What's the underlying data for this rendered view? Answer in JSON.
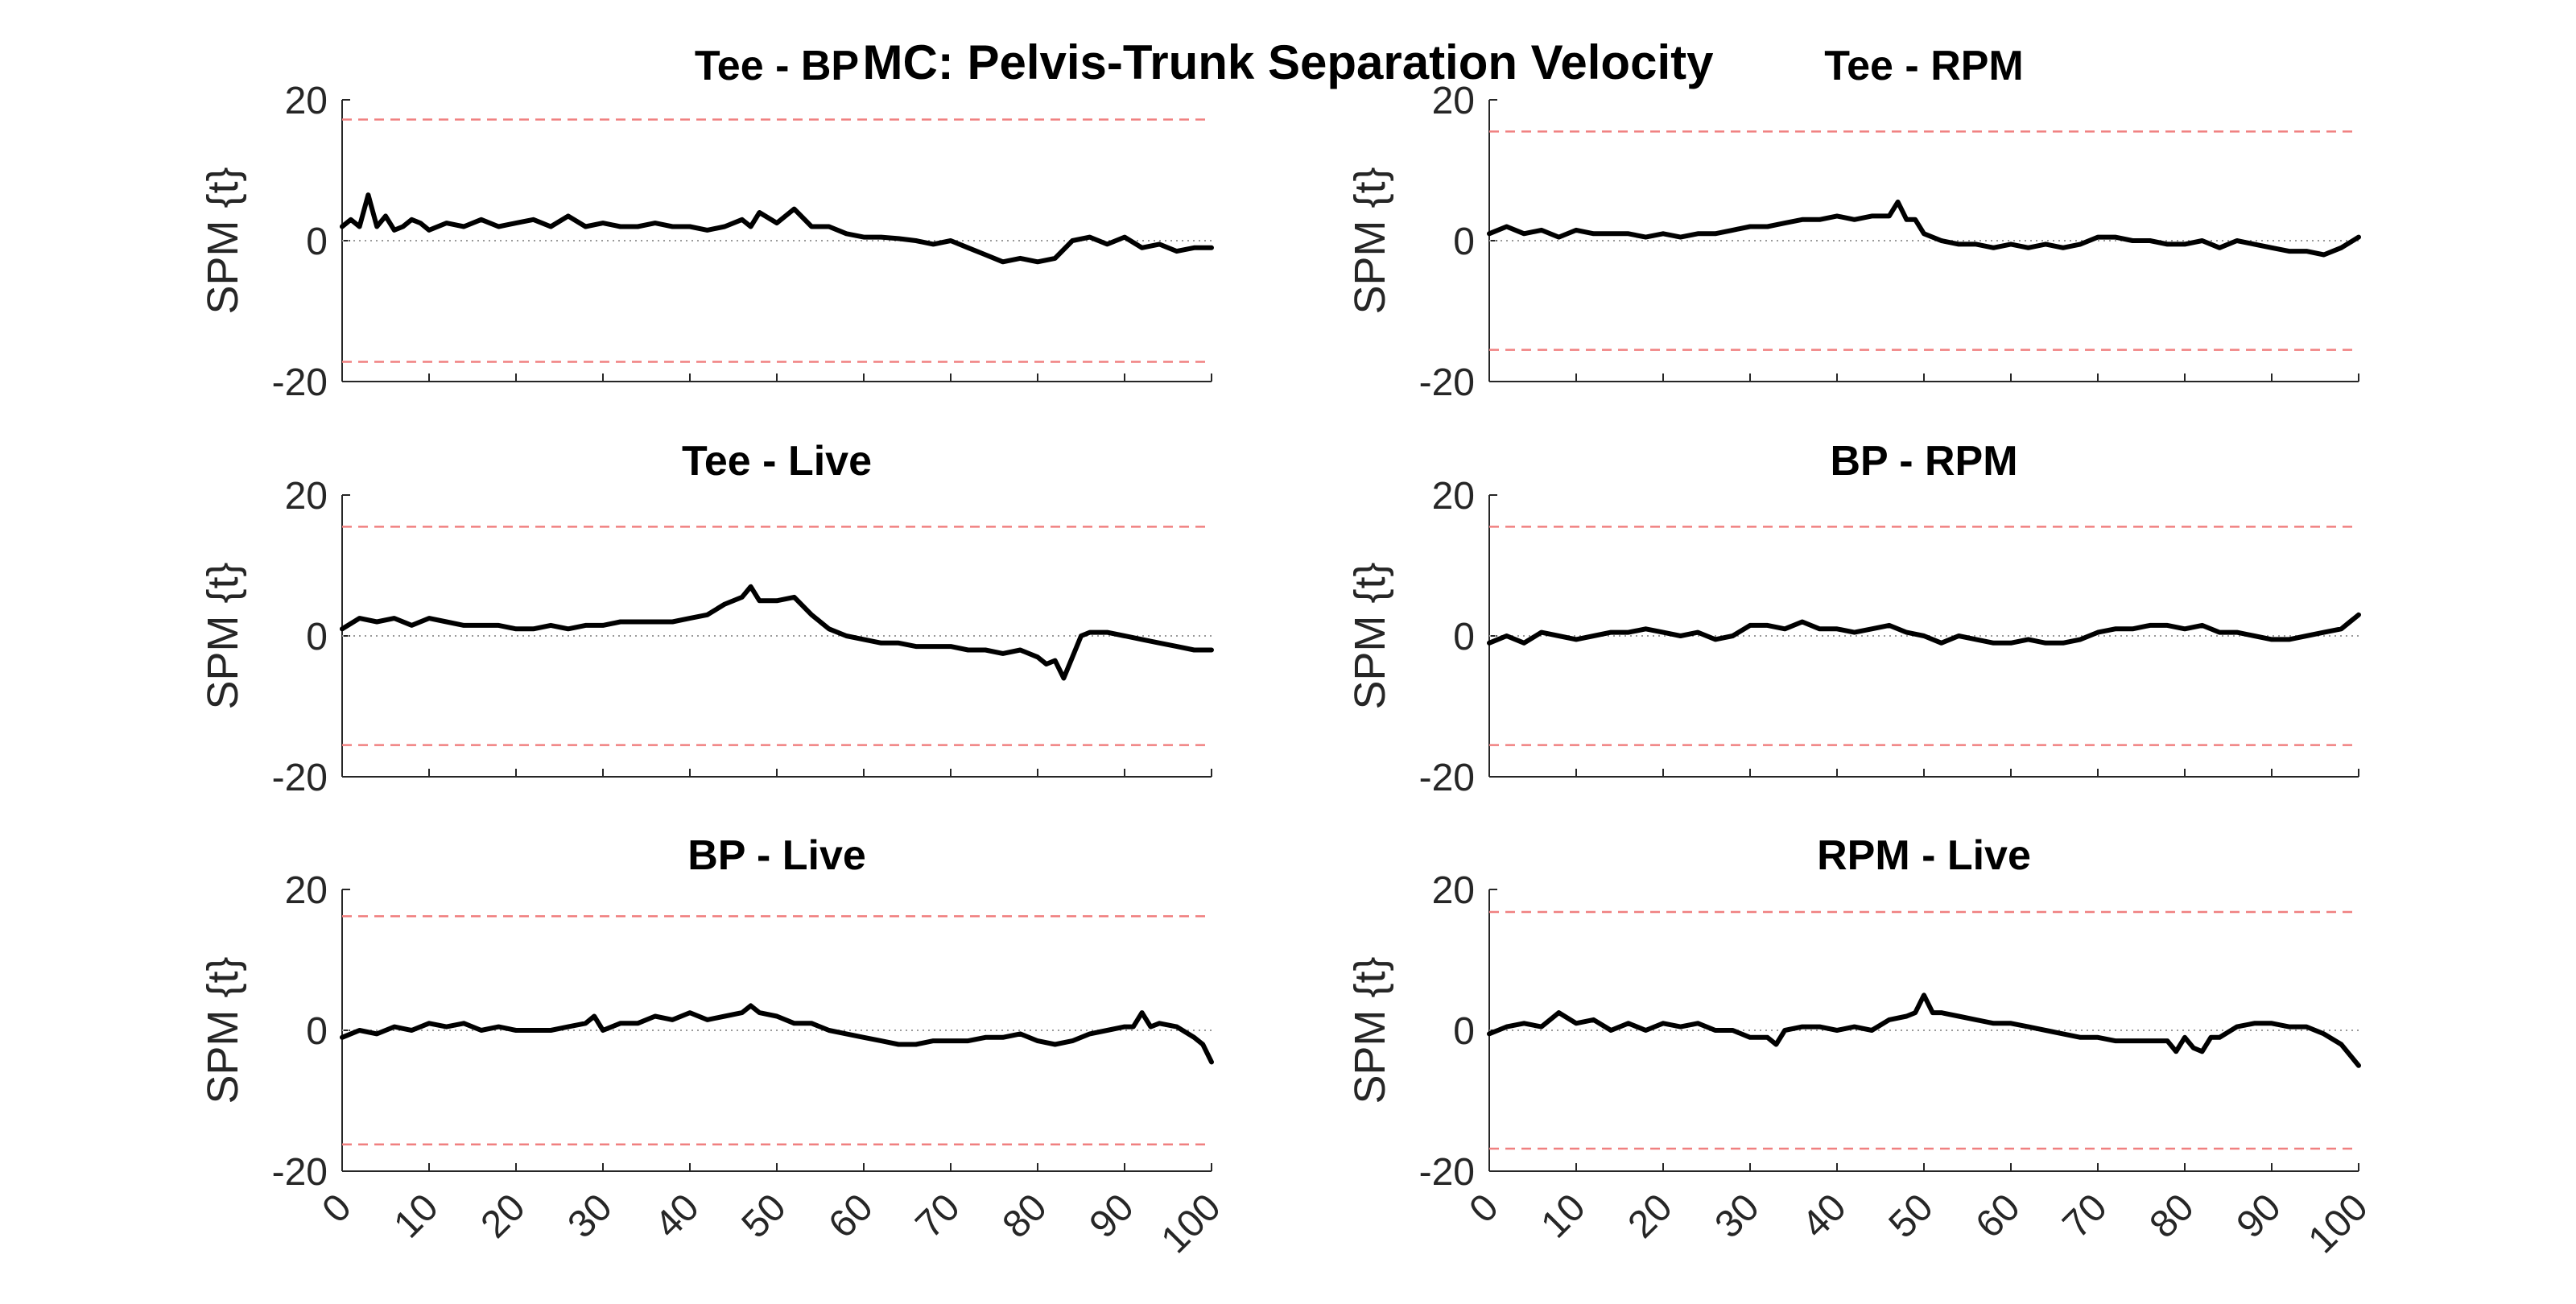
{
  "figure_title": "MC: Pelvis-Trunk Separation Velocity",
  "chart_data": [
    {
      "type": "line",
      "title": "Tee - BP",
      "ylabel": "SPM {t}",
      "xlim": [
        0,
        100
      ],
      "ylim": [
        -20,
        20
      ],
      "yticks": [
        "-20",
        "0",
        "20"
      ],
      "xticks": [
        "0",
        "10",
        "20",
        "30",
        "40",
        "50",
        "60",
        "70",
        "80",
        "90",
        "100"
      ],
      "show_xtick_labels": false,
      "threshold": 17.2,
      "series": [
        {
          "x": [
            0,
            1,
            2,
            3,
            4,
            5,
            6,
            7,
            8,
            9,
            10,
            12,
            14,
            16,
            18,
            20,
            22,
            24,
            26,
            28,
            30,
            32,
            34,
            36,
            38,
            40,
            42,
            44,
            46,
            47,
            48,
            50,
            52,
            54,
            56,
            58,
            60,
            62,
            64,
            66,
            68,
            70,
            72,
            74,
            76,
            78,
            80,
            82,
            84,
            86,
            88,
            90,
            92,
            94,
            96,
            98,
            100
          ],
          "y": [
            2,
            3,
            2,
            6.5,
            2,
            3.5,
            1.5,
            2,
            3,
            2.5,
            1.5,
            2.5,
            2,
            3,
            2,
            2.5,
            3,
            2,
            3.5,
            2,
            2.5,
            2,
            2,
            2.5,
            2,
            2,
            1.5,
            2,
            3,
            2,
            4,
            2.5,
            4.5,
            2,
            2,
            1,
            0.5,
            0.5,
            0.3,
            0,
            -0.5,
            0,
            -1,
            -2,
            -3,
            -2.5,
            -3,
            -2.5,
            0,
            0.5,
            -0.5,
            0.5,
            -1,
            -0.5,
            -1.5,
            -1,
            -1
          ]
        }
      ]
    },
    {
      "type": "line",
      "title": "Tee - RPM",
      "ylabel": "SPM {t}",
      "xlim": [
        0,
        100
      ],
      "ylim": [
        -20,
        20
      ],
      "yticks": [
        "-20",
        "0",
        "20"
      ],
      "xticks": [
        "0",
        "10",
        "20",
        "30",
        "40",
        "50",
        "60",
        "70",
        "80",
        "90",
        "100"
      ],
      "show_xtick_labels": false,
      "threshold": 15.5,
      "series": [
        {
          "x": [
            0,
            2,
            4,
            6,
            8,
            10,
            12,
            14,
            16,
            18,
            20,
            22,
            24,
            26,
            28,
            30,
            32,
            34,
            36,
            38,
            40,
            42,
            44,
            46,
            47,
            48,
            49,
            50,
            52,
            54,
            56,
            58,
            60,
            62,
            64,
            66,
            68,
            70,
            72,
            74,
            76,
            78,
            80,
            82,
            84,
            86,
            88,
            90,
            92,
            94,
            96,
            98,
            100
          ],
          "y": [
            1,
            2,
            1,
            1.5,
            0.5,
            1.5,
            1,
            1,
            1,
            0.5,
            1,
            0.5,
            1,
            1,
            1.5,
            2,
            2,
            2.5,
            3,
            3,
            3.5,
            3,
            3.5,
            3.5,
            5.5,
            3,
            3,
            1,
            0,
            -0.5,
            -0.5,
            -1,
            -0.5,
            -1,
            -0.5,
            -1,
            -0.5,
            0.5,
            0.5,
            0,
            0,
            -0.5,
            -0.5,
            0,
            -1,
            0,
            -0.5,
            -1,
            -1.5,
            -1.5,
            -2,
            -1,
            0.5
          ]
        }
      ]
    },
    {
      "type": "line",
      "title": "Tee - Live",
      "ylabel": "SPM {t}",
      "xlim": [
        0,
        100
      ],
      "ylim": [
        -20,
        20
      ],
      "yticks": [
        "-20",
        "0",
        "20"
      ],
      "xticks": [
        "0",
        "10",
        "20",
        "30",
        "40",
        "50",
        "60",
        "70",
        "80",
        "90",
        "100"
      ],
      "show_xtick_labels": false,
      "threshold": 15.5,
      "series": [
        {
          "x": [
            0,
            2,
            4,
            6,
            8,
            10,
            12,
            14,
            16,
            18,
            20,
            22,
            24,
            26,
            28,
            30,
            32,
            34,
            36,
            38,
            40,
            42,
            44,
            46,
            47,
            48,
            50,
            52,
            54,
            56,
            58,
            60,
            62,
            64,
            66,
            68,
            70,
            72,
            74,
            76,
            78,
            80,
            81,
            82,
            83,
            84,
            85,
            86,
            88,
            90,
            92,
            94,
            96,
            98,
            100
          ],
          "y": [
            1,
            2.5,
            2,
            2.5,
            1.5,
            2.5,
            2,
            1.5,
            1.5,
            1.5,
            1,
            1,
            1.5,
            1,
            1.5,
            1.5,
            2,
            2,
            2,
            2,
            2.5,
            3,
            4.5,
            5.5,
            7,
            5,
            5,
            5.5,
            3,
            1,
            0,
            -0.5,
            -1,
            -1,
            -1.5,
            -1.5,
            -1.5,
            -2,
            -2,
            -2.5,
            -2,
            -3,
            -4,
            -3.5,
            -6,
            -3,
            0,
            0.5,
            0.5,
            0,
            -0.5,
            -1,
            -1.5,
            -2,
            -2
          ]
        }
      ]
    },
    {
      "type": "line",
      "title": "BP - RPM",
      "ylabel": "SPM {t}",
      "xlim": [
        0,
        100
      ],
      "ylim": [
        -20,
        20
      ],
      "yticks": [
        "-20",
        "0",
        "20"
      ],
      "xticks": [
        "0",
        "10",
        "20",
        "30",
        "40",
        "50",
        "60",
        "70",
        "80",
        "90",
        "100"
      ],
      "show_xtick_labels": false,
      "threshold": 15.5,
      "series": [
        {
          "x": [
            0,
            2,
            4,
            6,
            8,
            10,
            12,
            14,
            16,
            18,
            20,
            22,
            24,
            26,
            28,
            30,
            32,
            34,
            36,
            38,
            40,
            42,
            44,
            46,
            48,
            50,
            52,
            54,
            56,
            58,
            60,
            62,
            64,
            66,
            68,
            70,
            72,
            74,
            76,
            78,
            80,
            82,
            84,
            86,
            88,
            90,
            92,
            94,
            96,
            98,
            99,
            100
          ],
          "y": [
            -1,
            0,
            -1,
            0.5,
            0,
            -0.5,
            0,
            0.5,
            0.5,
            1,
            0.5,
            0,
            0.5,
            -0.5,
            0,
            1.5,
            1.5,
            1,
            2,
            1,
            1,
            0.5,
            1,
            1.5,
            0.5,
            0,
            -1,
            0,
            -0.5,
            -1,
            -1,
            -0.5,
            -1,
            -1,
            -0.5,
            0.5,
            1,
            1,
            1.5,
            1.5,
            1,
            1.5,
            0.5,
            0.5,
            0,
            -0.5,
            -0.5,
            0,
            0.5,
            1,
            2,
            3
          ]
        }
      ]
    },
    {
      "type": "line",
      "title": "BP - Live",
      "ylabel": "SPM {t}",
      "xlim": [
        0,
        100
      ],
      "ylim": [
        -20,
        20
      ],
      "yticks": [
        "-20",
        "0",
        "20"
      ],
      "xticks": [
        "0",
        "10",
        "20",
        "30",
        "40",
        "50",
        "60",
        "70",
        "80",
        "90",
        "100"
      ],
      "show_xtick_labels": true,
      "threshold": 16.2,
      "series": [
        {
          "x": [
            0,
            2,
            4,
            6,
            8,
            10,
            12,
            14,
            16,
            18,
            20,
            22,
            24,
            26,
            28,
            29,
            30,
            32,
            34,
            36,
            38,
            40,
            42,
            44,
            46,
            47,
            48,
            50,
            52,
            54,
            56,
            58,
            60,
            62,
            64,
            66,
            68,
            70,
            72,
            74,
            76,
            78,
            80,
            82,
            84,
            86,
            88,
            90,
            91,
            92,
            93,
            94,
            96,
            98,
            99,
            100
          ],
          "y": [
            -1,
            0,
            -0.5,
            0.5,
            0,
            1,
            0.5,
            1,
            0,
            0.5,
            0,
            0,
            0,
            0.5,
            1,
            2,
            0,
            1,
            1,
            2,
            1.5,
            2.5,
            1.5,
            2,
            2.5,
            3.5,
            2.5,
            2,
            1,
            1,
            0,
            -0.5,
            -1,
            -1.5,
            -2,
            -2,
            -1.5,
            -1.5,
            -1.5,
            -1,
            -1,
            -0.5,
            -1.5,
            -2,
            -1.5,
            -0.5,
            0,
            0.5,
            0.5,
            2.5,
            0.5,
            1,
            0.5,
            -1,
            -2,
            -4.5
          ]
        }
      ]
    },
    {
      "type": "line",
      "title": "RPM - Live",
      "ylabel": "SPM {t}",
      "xlim": [
        0,
        100
      ],
      "ylim": [
        -20,
        20
      ],
      "yticks": [
        "-20",
        "0",
        "20"
      ],
      "xticks": [
        "0",
        "10",
        "20",
        "30",
        "40",
        "50",
        "60",
        "70",
        "80",
        "90",
        "100"
      ],
      "show_xtick_labels": true,
      "threshold": 16.8,
      "series": [
        {
          "x": [
            0,
            2,
            4,
            6,
            8,
            10,
            12,
            14,
            16,
            18,
            20,
            22,
            24,
            26,
            28,
            30,
            32,
            33,
            34,
            36,
            38,
            40,
            42,
            44,
            46,
            48,
            49,
            50,
            51,
            52,
            54,
            56,
            58,
            60,
            62,
            64,
            66,
            68,
            70,
            72,
            74,
            76,
            78,
            79,
            80,
            81,
            82,
            83,
            84,
            86,
            88,
            90,
            92,
            94,
            96,
            98,
            100
          ],
          "y": [
            -0.5,
            0.5,
            1,
            0.5,
            2.5,
            1,
            1.5,
            0,
            1,
            0,
            1,
            0.5,
            1,
            0,
            0,
            -1,
            -1,
            -2,
            0,
            0.5,
            0.5,
            0,
            0.5,
            0,
            1.5,
            2,
            2.5,
            5,
            2.5,
            2.5,
            2,
            1.5,
            1,
            1,
            0.5,
            0,
            -0.5,
            -1,
            -1,
            -1.5,
            -1.5,
            -1.5,
            -1.5,
            -3,
            -1,
            -2.5,
            -3,
            -1,
            -1,
            0.5,
            1,
            1,
            0.5,
            0.5,
            -0.5,
            -2,
            -5
          ]
        }
      ]
    }
  ]
}
